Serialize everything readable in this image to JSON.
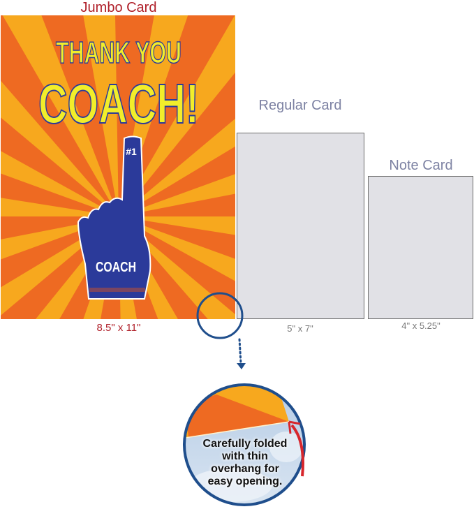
{
  "jumbo": {
    "title": "Jumbo Card",
    "size": "8.5\" x 11\"",
    "card_text": {
      "line1": "THANK YOU",
      "line2": "COACH!",
      "finger_number": "#1",
      "finger_word": "COACH"
    }
  },
  "regular": {
    "title": "Regular Card",
    "size": "5\" x 7\""
  },
  "note": {
    "title": "Note Card",
    "size": "4\" x 5.25\""
  },
  "callout": {
    "text": "Carefully folded with thin overhang for easy opening."
  },
  "colors": {
    "title_red": "#b0202a",
    "label_gray": "#7d82a3",
    "circle_blue": "#1f4e8c",
    "orange": "#ee6a22",
    "yellow_orange": "#f7a81e",
    "finger_blue": "#2b3a9a",
    "text_yellow": "#f2ee2a",
    "arrow_red": "#d7262c"
  }
}
